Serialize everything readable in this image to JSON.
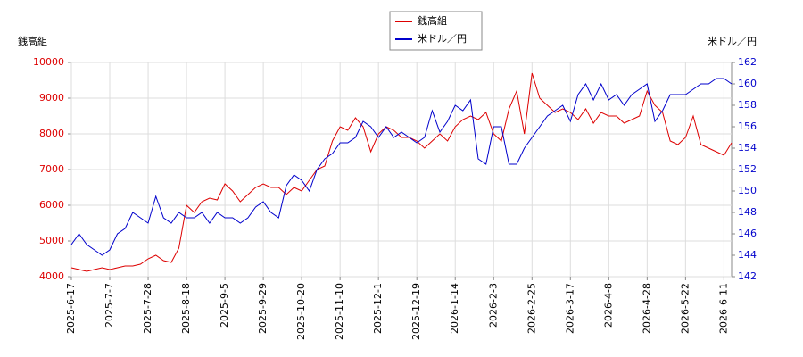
{
  "chart_data": {
    "type": "line",
    "y_label": "銭高組",
    "y2_label": "米ドル／円",
    "categories": [
      "2025-6-17",
      null,
      null,
      null,
      null,
      "2025-7-7",
      null,
      null,
      null,
      null,
      "2025-7-28",
      null,
      null,
      null,
      null,
      "2025-8-18",
      null,
      null,
      null,
      null,
      "2025-9-5",
      null,
      null,
      null,
      null,
      "2025-9-29",
      null,
      null,
      null,
      null,
      "2025-10-20",
      null,
      null,
      null,
      null,
      "2025-11-10",
      null,
      null,
      null,
      null,
      "2025-12-1",
      null,
      null,
      null,
      null,
      "2025-12-19",
      null,
      null,
      null,
      null,
      "2026-1-14",
      null,
      null,
      null,
      null,
      "2026-2-3",
      null,
      null,
      null,
      null,
      "2026-2-25",
      null,
      null,
      null,
      null,
      "2026-3-17",
      null,
      null,
      null,
      null,
      "2026-4-8",
      null,
      null,
      null,
      null,
      "2026-4-28",
      null,
      null,
      null,
      null,
      "2026-5-22",
      null,
      null,
      null,
      null,
      "2026-6-11",
      null
    ],
    "series": [
      {
        "name": "銭高組",
        "color": "#dd0000",
        "axis": "y",
        "values": [
          4250,
          4200,
          4150,
          4200,
          4250,
          4200,
          4250,
          4300,
          4300,
          4350,
          4500,
          4600,
          4450,
          4400,
          4800,
          6000,
          5800,
          6100,
          6200,
          6150,
          6600,
          6400,
          6100,
          6300,
          6500,
          6600,
          6500,
          6500,
          6300,
          6500,
          6400,
          6700,
          7000,
          7100,
          7800,
          8200,
          8100,
          8450,
          8200,
          7500,
          8000,
          8200,
          8100,
          7900,
          7900,
          7800,
          7600,
          7800,
          8000,
          7800,
          8200,
          8400,
          8500,
          8400,
          8600,
          8000,
          7800,
          8700,
          9200,
          8000,
          9700,
          9000,
          8800,
          8600,
          8700,
          8600,
          8400,
          8700,
          8300,
          8600,
          8500,
          8500,
          8300,
          8400,
          8500,
          9200,
          8800,
          8600,
          7800,
          7700,
          7900,
          8500,
          7700,
          7600,
          7500,
          7400,
          7750
        ]
      },
      {
        "name": "米ドル／円",
        "color": "#0000cc",
        "axis": "y2",
        "values": [
          145,
          146,
          145,
          144.5,
          144,
          144.5,
          146,
          146.5,
          148,
          147.5,
          147,
          149.5,
          147.5,
          147,
          148,
          147.5,
          147.5,
          148,
          147,
          148,
          147.5,
          147.5,
          147,
          147.5,
          148.5,
          149,
          148,
          147.5,
          150.5,
          151.5,
          151,
          150,
          152,
          153,
          153.5,
          154.5,
          154.5,
          155,
          156.5,
          156,
          155,
          156,
          155,
          155.5,
          155,
          154.5,
          155,
          157.5,
          155.5,
          156.5,
          158,
          157.5,
          158.5,
          153,
          152.5,
          156,
          156,
          152.5,
          152.5,
          154,
          155,
          156,
          157,
          157.5,
          158,
          156.5,
          159,
          160,
          158.5,
          160,
          158.5,
          159,
          158,
          159,
          159.5,
          160,
          156.5,
          157.5,
          159,
          159,
          159,
          159.5,
          160,
          160,
          160.5,
          160.5,
          160
        ]
      }
    ],
    "ylim": [
      4000,
      10000
    ],
    "yticks": [
      4000,
      5000,
      6000,
      7000,
      8000,
      9000,
      10000
    ],
    "y2lim": [
      142,
      162
    ],
    "y2ticks": [
      142,
      144,
      146,
      148,
      150,
      152,
      154,
      156,
      158,
      160,
      162
    ],
    "grid": true
  }
}
